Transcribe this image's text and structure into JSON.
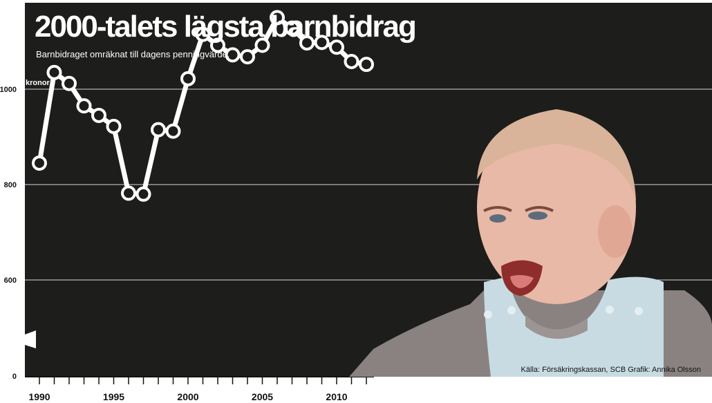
{
  "chart_data": {
    "type": "line",
    "title": "2000-talets lägsta barnbidrag",
    "subtitle": "Barnbidraget omräknat till dagens penningvärde.",
    "ylabel": "kronor",
    "xlabel": "",
    "ylim": [
      0,
      1150
    ],
    "y_axis_break": "between 0 and 600",
    "yticks": [
      0,
      600,
      800,
      1000
    ],
    "ytick_labels": [
      "0",
      "600",
      "800",
      "1000"
    ],
    "xticks": [
      1990,
      1995,
      2000,
      2005,
      2010
    ],
    "xtick_labels": [
      "1990",
      "1995",
      "2000",
      "2005",
      "2010"
    ],
    "x": [
      1990,
      1991,
      1992,
      1993,
      1994,
      1995,
      1996,
      1997,
      1998,
      1999,
      2000,
      2001,
      2002,
      2003,
      2004,
      2005,
      2006,
      2007,
      2008,
      2009,
      2010,
      2011,
      2012
    ],
    "series": [
      {
        "values": [
          845,
          1035,
          1012,
          965,
          945,
          922,
          782,
          780,
          915,
          912,
          1022,
          1115,
          1092,
          1072,
          1068,
          1092,
          1150,
          1128,
          1097,
          1098,
          1088,
          1058,
          1052
        ]
      }
    ],
    "grid": true,
    "background_color": "#1d1d1b",
    "line_color": "#ffffff",
    "marker_fill": "#1d1d1b"
  },
  "source_text": "Källa: Försäkringskassan, SCB   Grafik: Annika Olsson",
  "photo": "crying-baby-photo"
}
